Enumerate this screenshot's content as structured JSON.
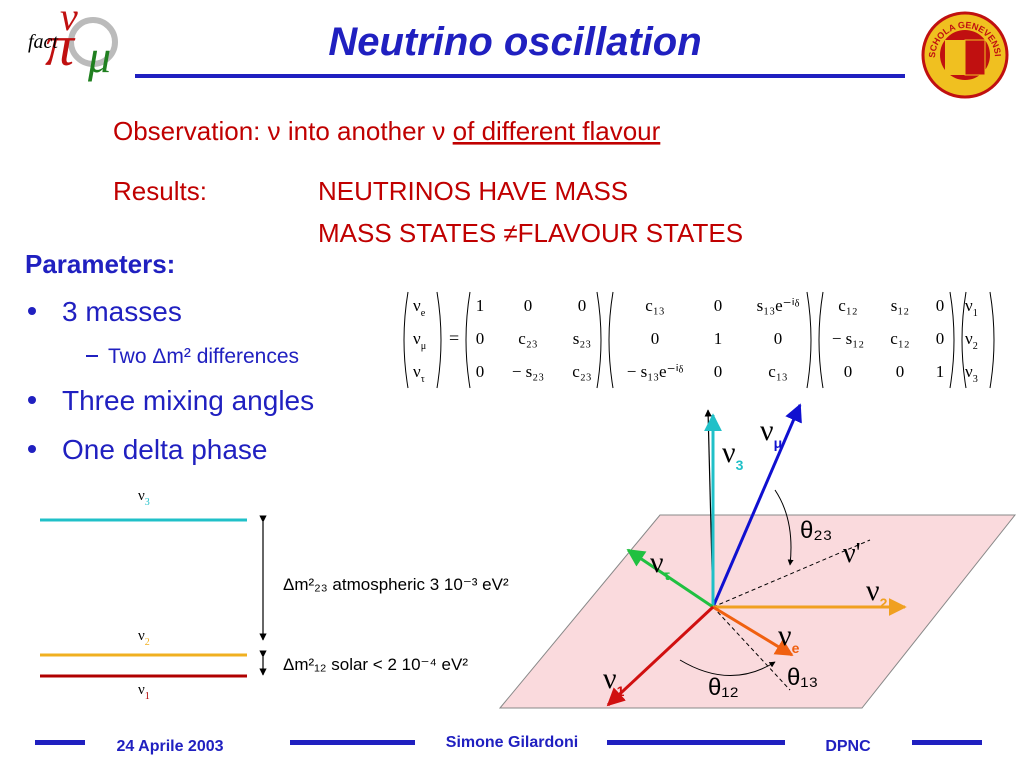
{
  "header": {
    "title": "Neutrino oscillation",
    "logo_left": "fact",
    "logo_right": "SCHOLA GENEVENSIS"
  },
  "observation": {
    "label": "Observation:",
    "text": "ν into another ν",
    "underlined": "of different flavour"
  },
  "results": {
    "label": "Results:",
    "lines": [
      "NEUTRINOS HAVE MASS",
      "MASS STATES ≠FLAVOUR STATES"
    ]
  },
  "parameters": {
    "heading": "Parameters:",
    "items": [
      {
        "text": "3 masses",
        "sub": "Two Δm² differences"
      },
      {
        "text": "Three mixing angles"
      },
      {
        "text": "One delta phase"
      }
    ]
  },
  "matrix": {
    "lhs": [
      {
        "base": "ν",
        "sub": "e"
      },
      {
        "base": "ν",
        "sub": "μ"
      },
      {
        "base": "ν",
        "sub": "τ"
      }
    ],
    "equals": "=",
    "factors": [
      [
        [
          "1",
          "0",
          "0"
        ],
        [
          "0",
          "c₂₃",
          "s₂₃"
        ],
        [
          "0",
          "− s₂₃",
          "c₂₃"
        ]
      ],
      [
        [
          "c₁₃",
          "0",
          "s₁₃e⁻ⁱᵟ"
        ],
        [
          "0",
          "1",
          "0"
        ],
        [
          "− s₁₃e⁻ⁱᵟ",
          "0",
          "c₁₃"
        ]
      ],
      [
        [
          "c₁₂",
          "s₁₂",
          "0"
        ],
        [
          "− s₁₂",
          "c₁₂",
          "0"
        ],
        [
          "0",
          "0",
          "1"
        ]
      ]
    ],
    "rhs": [
      {
        "base": "ν",
        "sub": "1"
      },
      {
        "base": "ν",
        "sub": "2"
      },
      {
        "base": "ν",
        "sub": "3"
      }
    ]
  },
  "levels": {
    "states": [
      {
        "base": "ν",
        "sub": "3",
        "color": "#20c0c8"
      },
      {
        "base": "ν",
        "sub": "2",
        "color": "#f0b020"
      },
      {
        "base": "ν",
        "sub": "1",
        "color": "#b00000"
      }
    ],
    "splittings": [
      "Δm²₂₃  atmospheric 3 10⁻³ eV²",
      "Δm²₁₂  solar < 2 10⁻⁴ eV²"
    ]
  },
  "mixing": {
    "vectors": [
      {
        "base": "ν",
        "sub": "μ",
        "color": "#1010d0"
      },
      {
        "base": "ν",
        "sub": "3",
        "color": "#20c0c8"
      },
      {
        "base": "ν",
        "sub": "τ",
        "color": "#20c040"
      },
      {
        "base": "ν",
        "sub": "2",
        "color": "#f0a020"
      },
      {
        "base": "ν",
        "sub": "e",
        "color": "#f06010"
      },
      {
        "base": "ν",
        "sub": "1",
        "color": "#d01010"
      }
    ],
    "prime": "ν'",
    "angles": [
      "θ₂₃",
      "θ₁₂",
      "θ₁₃"
    ]
  },
  "footer": {
    "date": "24 Aprile 2003",
    "author": "Simone Gilardoni",
    "institute": "DPNC"
  }
}
